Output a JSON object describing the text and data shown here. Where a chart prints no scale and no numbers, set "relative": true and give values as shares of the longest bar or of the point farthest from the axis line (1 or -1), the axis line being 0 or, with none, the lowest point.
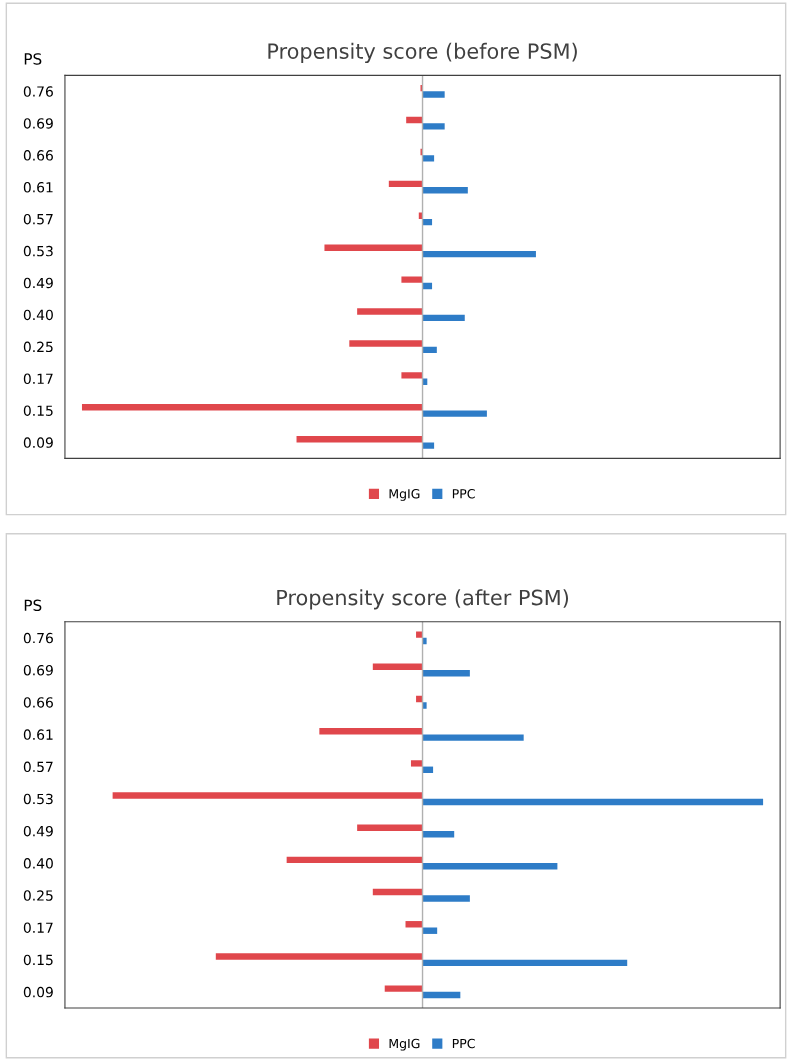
{
  "chart_data": [
    {
      "type": "bar",
      "orientation": "horizontal",
      "relative": true,
      "title": "Propensity score (before PSM)",
      "ylabel": "PS",
      "legend": "bottom",
      "grid": false,
      "categories": [
        "0.76",
        "0.69",
        "0.66",
        "0.61",
        "0.57",
        "0.53",
        "0.49",
        "0.40",
        "0.25",
        "0.17",
        "0.15",
        "0.09"
      ],
      "series": [
        {
          "name": "MgIG",
          "color": "#e0474c",
          "values": [
            -0.006,
            -0.048,
            -0.006,
            -0.099,
            -0.011,
            -0.288,
            -0.062,
            -0.192,
            -0.215,
            -0.062,
            -1,
            -0.37
          ]
        },
        {
          "name": "PPC",
          "color": "#2e7cc7",
          "values": [
            0.065,
            0.065,
            0.034,
            0.133,
            0.028,
            0.333,
            0.028,
            0.124,
            0.042,
            0.014,
            0.189,
            0.034
          ]
        }
      ]
    },
    {
      "type": "bar",
      "orientation": "horizontal",
      "relative": true,
      "title": "Propensity score (after PSM)",
      "ylabel": "PS",
      "legend": "bottom",
      "grid": false,
      "categories": [
        "0.76",
        "0.69",
        "0.66",
        "0.61",
        "0.57",
        "0.53",
        "0.49",
        "0.40",
        "0.25",
        "0.17",
        "0.15",
        "0.09"
      ],
      "series": [
        {
          "name": "MgIG",
          "color": "#e0474c",
          "values": [
            -0.019,
            -0.146,
            -0.019,
            -0.303,
            -0.034,
            -0.91,
            -0.192,
            -0.399,
            -0.146,
            -0.05,
            -0.607,
            -0.111
          ]
        },
        {
          "name": "PPC",
          "color": "#2e7cc7",
          "values": [
            0.012,
            0.139,
            0.012,
            0.297,
            0.031,
            1,
            0.093,
            0.396,
            0.139,
            0.043,
            0.601,
            0.111
          ]
        }
      ]
    }
  ]
}
